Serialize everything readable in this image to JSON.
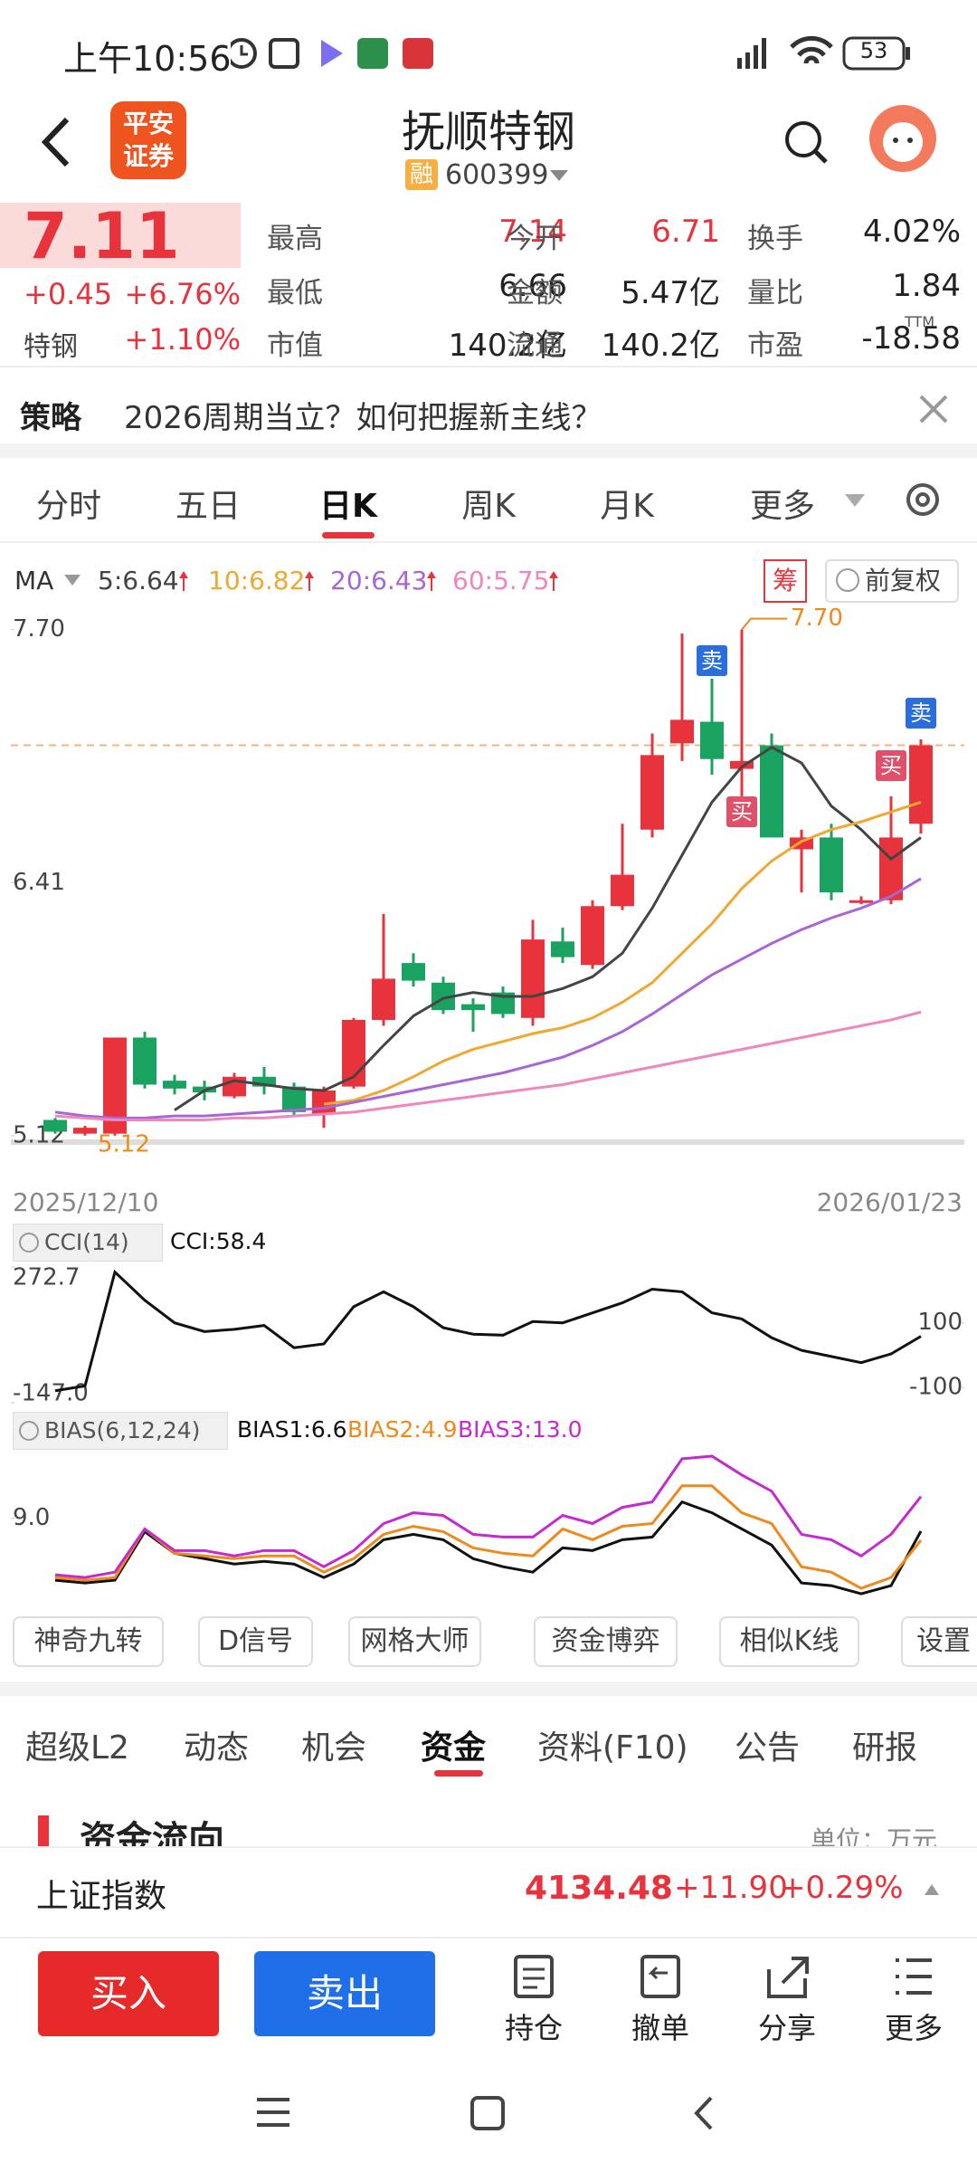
{
  "status_bar": {
    "time": "上午10:56",
    "battery": "53"
  },
  "header": {
    "logo": [
      "平安",
      "证券"
    ],
    "title": "抚顺特钢",
    "badge": "融",
    "code": "600399"
  },
  "quote": {
    "price": "7.11",
    "change": "+0.45",
    "change_pct": "+6.76%",
    "sector": "特钢",
    "sector_pct": "+1.10%",
    "stats": [
      [
        [
          "最高",
          "7.14"
        ],
        [
          "今开",
          "6.71"
        ],
        [
          "换手",
          "4.02%"
        ]
      ],
      [
        [
          "最低",
          "6.66"
        ],
        [
          "金额",
          "5.47亿"
        ],
        [
          "量比",
          "1.84"
        ]
      ],
      [
        [
          "市值",
          "140.2亿"
        ],
        [
          "流通",
          "140.2亿"
        ],
        [
          "市盈",
          "-18.58"
        ]
      ]
    ],
    "ttm": "TTM"
  },
  "strategy": {
    "label": "策略",
    "text": "2026周期当立？如何把握新主线？"
  },
  "period_tabs": [
    "分时",
    "五日",
    "日K",
    "周K",
    "月K",
    "更多"
  ],
  "chart_tools": {
    "chips": "筹",
    "adjust": "前复权"
  },
  "chart_data": [
    {
      "type": "candlestick",
      "legend_label": "MA",
      "open": [
        5.2,
        5.13,
        5.13,
        5.62,
        5.4,
        5.37,
        5.32,
        5.42,
        5.37,
        5.23,
        5.37,
        5.71,
        6.0,
        5.9,
        5.79,
        5.85,
        5.72,
        6.11,
        5.99,
        6.29,
        6.68,
        7.12,
        7.23,
        6.99,
        7.11,
        6.58,
        6.64,
        6.31,
        6.32,
        6.71
      ],
      "high": [
        5.21,
        5.17,
        5.62,
        5.65,
        5.43,
        5.4,
        5.44,
        5.47,
        5.39,
        5.37,
        5.72,
        6.25,
        6.05,
        5.93,
        5.82,
        5.88,
        6.22,
        6.18,
        6.32,
        6.71,
        7.17,
        7.68,
        7.45,
        7.7,
        7.17,
        6.68,
        6.71,
        6.34,
        6.85,
        7.14
      ],
      "low": [
        5.13,
        5.12,
        5.12,
        5.36,
        5.33,
        5.3,
        5.31,
        5.33,
        5.22,
        5.16,
        5.36,
        5.68,
        5.88,
        5.74,
        5.65,
        5.72,
        5.68,
        6.0,
        5.97,
        6.27,
        6.64,
        7.03,
        6.96,
        6.85,
        6.64,
        6.36,
        6.32,
        6.3,
        6.3,
        6.66
      ],
      "close": [
        5.14,
        5.16,
        5.62,
        5.38,
        5.36,
        5.34,
        5.42,
        5.37,
        5.24,
        5.35,
        5.71,
        5.92,
        5.91,
        5.76,
        5.76,
        5.74,
        6.12,
        6.03,
        6.29,
        6.45,
        7.06,
        7.24,
        7.04,
        7.03,
        6.64,
        6.64,
        6.36,
        6.32,
        6.64,
        7.11
      ],
      "up_color": "#e8333c",
      "down_color": "#1aa260",
      "series": [
        {
          "name": "5:6.64",
          "color": "#444444",
          "values": [
            null,
            null,
            null,
            null,
            5.25,
            5.35,
            5.4,
            5.38,
            5.36,
            5.35,
            5.42,
            5.58,
            5.73,
            5.82,
            5.85,
            5.83,
            5.83,
            5.87,
            5.93,
            6.05,
            6.28,
            6.55,
            6.82,
            7.0,
            7.1,
            7.02,
            6.8,
            6.68,
            6.53,
            6.64
          ]
        },
        {
          "name": "10:6.82",
          "color": "#f0a830",
          "values": [
            null,
            null,
            null,
            null,
            null,
            null,
            null,
            null,
            null,
            5.28,
            5.3,
            5.35,
            5.42,
            5.5,
            5.56,
            5.6,
            5.64,
            5.67,
            5.72,
            5.8,
            5.9,
            6.05,
            6.2,
            6.38,
            6.52,
            6.62,
            6.68,
            6.72,
            6.77,
            6.82
          ]
        },
        {
          "name": "20:6.43",
          "color": "#a865d6",
          "values": [
            5.24,
            5.22,
            5.21,
            5.21,
            5.22,
            5.22,
            5.23,
            5.24,
            5.25,
            5.26,
            5.29,
            5.32,
            5.35,
            5.38,
            5.41,
            5.44,
            5.48,
            5.52,
            5.58,
            5.65,
            5.74,
            5.84,
            5.94,
            6.02,
            6.1,
            6.17,
            6.23,
            6.28,
            6.34,
            6.43
          ]
        },
        {
          "name": "60:5.75",
          "color": "#ef86bd",
          "values": [
            5.22,
            5.21,
            5.2,
            5.2,
            5.2,
            5.2,
            5.21,
            5.21,
            5.22,
            5.23,
            5.24,
            5.26,
            5.28,
            5.3,
            5.32,
            5.34,
            5.36,
            5.38,
            5.41,
            5.44,
            5.47,
            5.5,
            5.53,
            5.56,
            5.59,
            5.62,
            5.65,
            5.68,
            5.71,
            5.75
          ]
        }
      ],
      "ylim": [
        5.05,
        7.8
      ],
      "yticks": [
        {
          "value": 7.7,
          "label": "7.70"
        },
        6.41,
        5.12
      ],
      "grid": false,
      "x_labels": [
        "2025/12/10",
        "2026/01/23"
      ],
      "max_label": "7.70",
      "min_label": "5.12",
      "signals": [
        "卖",
        "买",
        "买",
        "卖"
      ]
    },
    {
      "type": "line",
      "legend_label": "CCI(14)",
      "series": [
        {
          "name": "CCI:58.4",
          "color": "#111111",
          "values": [
            -110,
            -95,
            257,
            170,
            100,
            73,
            80,
            92,
            23,
            35,
            150,
            196,
            150,
            85,
            65,
            62,
            104,
            100,
            131,
            162,
            204,
            196,
            131,
            112,
            54,
            15,
            -4,
            -23,
            4,
            58.4
          ]
        }
      ],
      "ylim": [
        -147,
        272.7
      ],
      "yticks": [
        272.7,
        {
          "value": -147,
          "label": "-147.0"
        }
      ],
      "y2lim": [
        -147,
        272.7
      ],
      "y2ticks": [
        100,
        -100
      ]
    },
    {
      "type": "line",
      "legend_label": "BIAS(6,12,24)",
      "series": [
        {
          "name": "BIAS1:6.6",
          "color": "#111111",
          "values": [
            -2.5,
            -3,
            -2.5,
            6.5,
            2.5,
            1.5,
            0.5,
            1,
            0.5,
            -2,
            0.5,
            5,
            6,
            5,
            1.5,
            0,
            -1,
            3.5,
            3,
            5,
            5.5,
            12,
            10,
            7,
            4,
            -3,
            -3.5,
            -5,
            -3.5,
            6.6
          ]
        },
        {
          "name": "BIAS2:4.9",
          "color": "#ee8a1c",
          "values": [
            -2,
            -2.5,
            -2,
            7,
            2.5,
            2,
            1.5,
            2,
            2,
            -1,
            1.5,
            6,
            7.5,
            6.5,
            3.5,
            2.5,
            2,
            7,
            5,
            7.5,
            8,
            15,
            15,
            10,
            8,
            0,
            -1,
            -4,
            -2,
            4.9
          ]
        },
        {
          "name": "BIAS3:13.0",
          "color": "#c52ad0",
          "values": [
            -1.5,
            -2,
            -1,
            7,
            3,
            3,
            2,
            3,
            3,
            0,
            3,
            8,
            10,
            9.5,
            6,
            5.5,
            5.5,
            9.5,
            8,
            11,
            12,
            20,
            20.5,
            17,
            14,
            6,
            5,
            2,
            6,
            13.0
          ]
        }
      ],
      "ylim": [
        -6,
        22
      ],
      "yticks": [
        {
          "value": 9,
          "label": "9.0"
        }
      ]
    }
  ],
  "tools": [
    "神奇九转",
    "D信号",
    "网格大师",
    "资金博弈",
    "相似K线",
    "设置"
  ],
  "info_tabs": [
    "超级L2",
    "动态",
    "机会",
    "资金",
    "资料(F10)",
    "公告",
    "研报"
  ],
  "fund_flow": {
    "title": "资金流向",
    "unit": "单位：万元"
  },
  "index_bar": {
    "name": "上证指数",
    "value": "4134.48",
    "change": "+11.90",
    "pct": "+0.29%"
  },
  "actions": {
    "buy": "买入",
    "sell": "卖出",
    "items": [
      "持仓",
      "撤单",
      "分享",
      "更多"
    ]
  }
}
